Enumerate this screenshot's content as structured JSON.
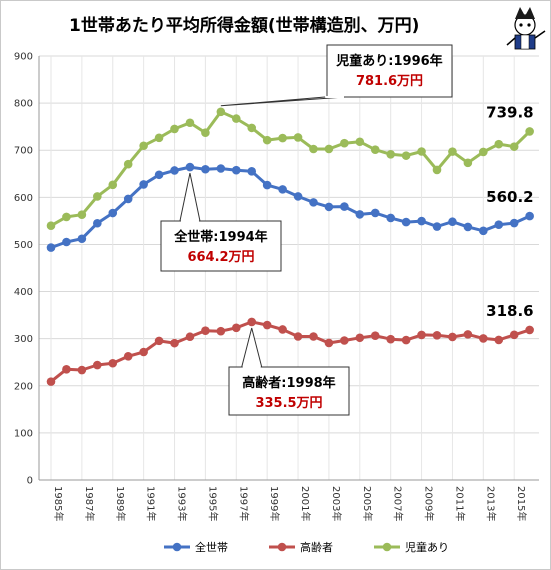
{
  "chart_data": {
    "type": "line",
    "title": "1世帯あたり平均所得金額(世帯構造別、万円)",
    "ylim": [
      0,
      900
    ],
    "yticks": [
      "0",
      "100",
      "200",
      "300",
      "400",
      "500",
      "600",
      "700",
      "800",
      "900"
    ],
    "grid": true,
    "legend_position": "bottom",
    "x": [
      "1985年",
      "1986年",
      "1987年",
      "1988年",
      "1989年",
      "1990年",
      "1991年",
      "1992年",
      "1993年",
      "1994年",
      "1995年",
      "1996年",
      "1997年",
      "1998年",
      "1999年",
      "2000年",
      "2001年",
      "2002年",
      "2003年",
      "2004年",
      "2005年",
      "2006年",
      "2007年",
      "2008年",
      "2009年",
      "2010年",
      "2011年",
      "2012年",
      "2013年",
      "2014年",
      "2015年",
      "2016年"
    ],
    "xtick_labels": [
      "1985年",
      "",
      "1987年",
      "",
      "1989年",
      "",
      "1991年",
      "",
      "1993年",
      "",
      "1995年",
      "",
      "1997年",
      "",
      "1999年",
      "",
      "2001年",
      "",
      "2003年",
      "",
      "2005年",
      "",
      "2007年",
      "",
      "2009年",
      "",
      "2011年",
      "",
      "2013年",
      "",
      "2015年",
      ""
    ],
    "series": [
      {
        "name": "全世帯",
        "color": "#4472c4",
        "end_label": "560.2",
        "values": [
          493.3,
          505.2,
          512.1,
          545.0,
          566.7,
          596.6,
          627.4,
          647.9,
          657.0,
          664.2,
          659.6,
          661.2,
          657.7,
          655.2,
          626.0,
          616.9,
          602.0,
          589.3,
          579.7,
          580.4,
          563.8,
          566.8,
          556.2,
          547.5,
          549.6,
          538.0,
          548.2,
          537.2,
          528.9,
          541.9,
          545.4,
          560.2
        ]
      },
      {
        "name": "高齢者",
        "color": "#c0504d",
        "end_label": "318.6",
        "values": [
          208.8,
          234.9,
          233.4,
          244.0,
          247.8,
          262.6,
          271.7,
          295.3,
          290.5,
          304.1,
          316.9,
          315.9,
          323.1,
          335.5,
          328.9,
          319.5,
          304.6,
          304.6,
          290.9,
          296.1,
          301.9,
          306.3,
          298.9,
          297.0,
          307.9,
          307.2,
          303.6,
          309.1,
          300.5,
          297.3,
          308.1,
          318.6
        ]
      },
      {
        "name": "児童あり",
        "color": "#9bbb59",
        "end_label": "739.8",
        "values": [
          539.8,
          558.4,
          563.1,
          601.9,
          626.5,
          670.4,
          709.5,
          726.4,
          745.2,
          758.3,
          737.2,
          781.6,
          767.1,
          747.4,
          721.4,
          725.8,
          727.2,
          702.6,
          702.7,
          714.9,
          718.0,
          701.2,
          691.4,
          688.5,
          697.3,
          658.1,
          697.0,
          673.2,
          696.3,
          712.9,
          707.6,
          739.8
        ]
      }
    ],
    "annotations": [
      {
        "series": "児童あり",
        "index": 11,
        "line1": "児童あり:1996年",
        "line2": "781.6万円"
      },
      {
        "series": "全世帯",
        "index": 9,
        "line1": "全世帯:1994年",
        "line2": "664.2万円"
      },
      {
        "series": "高齢者",
        "index": 13,
        "line1": "高齢者:1998年",
        "line2": "335.5万円"
      }
    ]
  }
}
